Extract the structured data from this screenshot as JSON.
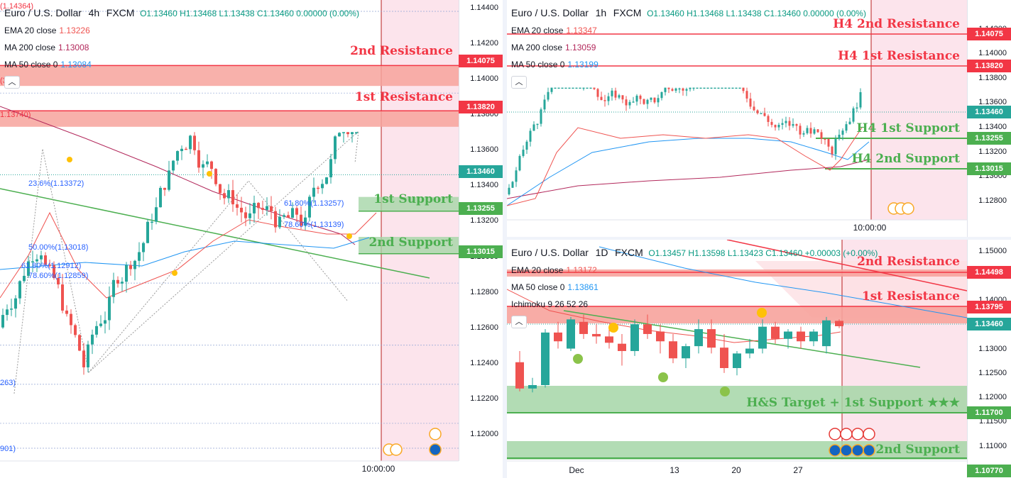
{
  "colors": {
    "up": "#26a69a",
    "down": "#ef5350",
    "ema20": "#ef5350",
    "ma50": "#2196f3",
    "ma200": "#b2285b",
    "resistance": "#f23645",
    "support": "#4caf50",
    "future": "#fce4ec",
    "priceBlue": "#2962ff",
    "last": "#26a69a"
  },
  "left_panel": {
    "symbol": "Euro / U.S. Dollar",
    "interval": "4h",
    "source": "FXCM",
    "ohlc": "O1.13460  H1.13468  L1.13438  C1.13460  0.00000 (0.00%)",
    "indicators": [
      {
        "label": "EMA 20 close",
        "value": "1.13226",
        "color": "#ef5350"
      },
      {
        "label": "MA 200 close",
        "value": "1.13008",
        "color": "#b2285b"
      },
      {
        "label": "MA 50 close 0",
        "value": "1.13084",
        "color": "#2196f3"
      }
    ],
    "zones": [
      {
        "label": "2nd Resistance",
        "price_tag": "1.14075",
        "kind": "resistance"
      },
      {
        "label": "1st Resistance",
        "price_tag": "1.13820",
        "kind": "resistance"
      },
      {
        "label": "1st Support",
        "price_tag": "1.13255",
        "kind": "support"
      },
      {
        "label": "2nd Support",
        "price_tag": "1.13015",
        "kind": "support"
      }
    ],
    "last_price": "1.13460",
    "fib_labels": [
      "23.6%(1.13372)",
      "61.80%(1.13257)",
      "78.60%(1.13139)",
      "50.00%(1.13018)",
      "61.80%(1.12912)",
      "78.60%(1.12859)"
    ],
    "edge_labels": [
      "(1.14364)",
      "1.13740)",
      "(34)",
      "263)",
      "901)"
    ],
    "time_label": "10:00:00",
    "chart_data": {
      "type": "candlestick",
      "yticks": [
        "1.14400",
        "1.14200",
        "1.14000",
        "1.13800",
        "1.13600",
        "1.13400",
        "1.13200",
        "1.13000",
        "1.12800",
        "1.12600",
        "1.12400",
        "1.12200",
        "1.12000"
      ],
      "ylim": [
        1.1188,
        1.1442
      ]
    }
  },
  "tr_panel": {
    "symbol": "Euro / U.S. Dollar",
    "interval": "1h",
    "source": "FXCM",
    "ohlc": "O1.13460  H1.13468  L1.13438  C1.13460  0.00000 (0.00%)",
    "indicators": [
      {
        "label": "EMA 20 close",
        "value": "1.13347",
        "color": "#ef5350"
      },
      {
        "label": "MA 200 close",
        "value": "1.13059",
        "color": "#b2285b"
      },
      {
        "label": "MA 50 close 0",
        "value": "1.13199",
        "color": "#2196f3"
      }
    ],
    "zones": [
      {
        "label": "H4 2nd Resistance",
        "price_tag": "1.14075",
        "kind": "resistance"
      },
      {
        "label": "H4 1st Resistance",
        "price_tag": "1.13820",
        "kind": "resistance"
      },
      {
        "label": "H4 1st Support",
        "price_tag": "1.13255",
        "kind": "support"
      },
      {
        "label": "H4 2nd Support",
        "price_tag": "1.13015",
        "kind": "support"
      }
    ],
    "last_price": "1.13460",
    "time_label": "10:00:00",
    "chart_data": {
      "type": "candlestick",
      "yticks": [
        "1.14200",
        "1.14000",
        "1.13800",
        "1.13600",
        "1.13400",
        "1.13200",
        "1.13000",
        "1.12800"
      ],
      "ylim": [
        1.127,
        1.144
      ]
    }
  },
  "br_panel": {
    "symbol": "Euro / U.S. Dollar",
    "interval": "1D",
    "source": "FXCM",
    "ohlc": "O1.13457  H1.13598  L1.13423  C1.13460  +0.00003 (+0.00%)",
    "indicators": [
      {
        "label": "EMA 20 close",
        "value": "1.13172",
        "color": "#ef5350"
      },
      {
        "label": "MA 50 close 0",
        "value": "1.13861",
        "color": "#2196f3"
      },
      {
        "label": "Ichimoku 9 26 52 26",
        "value": "",
        "color": "#131722"
      }
    ],
    "zones": [
      {
        "label": "2nd Resistance",
        "price_tag": "1.14498",
        "kind": "resistance"
      },
      {
        "label": "1st Resistance",
        "price_tag": "1.13795",
        "kind": "resistance"
      },
      {
        "label": "H&S Target + 1st Support ★★★",
        "price_tag": "1.11700",
        "kind": "support"
      },
      {
        "label": "2nd Support",
        "price_tag": "1.10770",
        "kind": "support"
      }
    ],
    "last_price": "1.13460",
    "x_labels": [
      "Dec",
      "13",
      "20",
      "27"
    ],
    "chart_data": {
      "type": "candlestick",
      "yticks": [
        "1.15000",
        "1.14500",
        "1.14000",
        "1.13500",
        "1.13000",
        "1.12500",
        "1.12000",
        "1.11500",
        "1.11000"
      ],
      "ylim": [
        1.1072,
        1.1515
      ]
    }
  }
}
